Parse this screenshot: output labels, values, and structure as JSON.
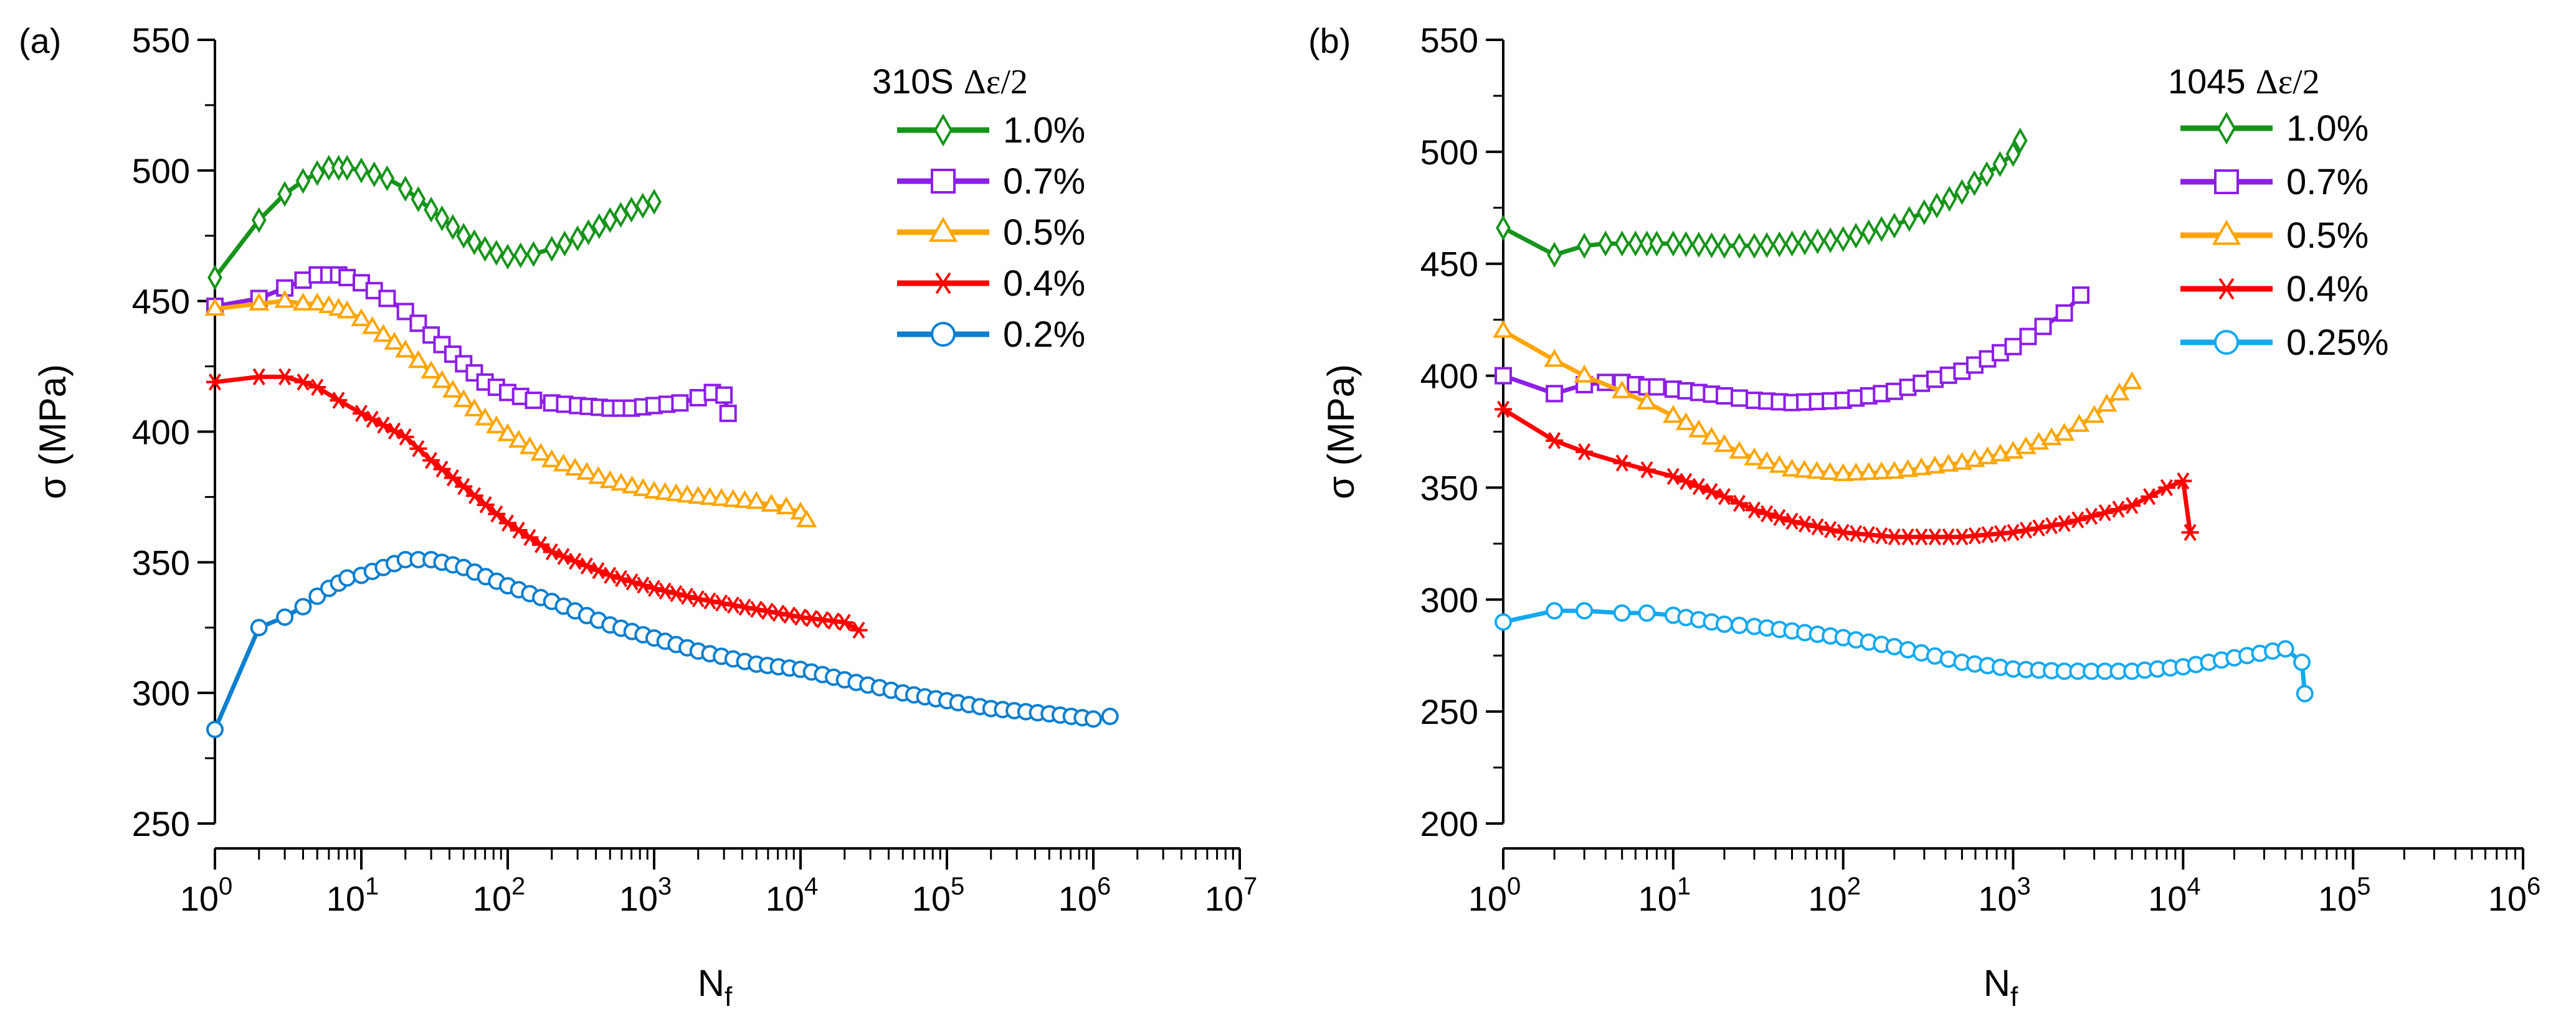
{
  "chart_data": [
    {
      "panel_label": "(a)",
      "type": "line",
      "x_scale": "log",
      "xlabel": "N",
      "xlabel_sub": "f",
      "ylabel": "σ (MPa)",
      "xlim": [
        1,
        10000000
      ],
      "ylim": [
        250,
        550
      ],
      "x_ticks": [
        {
          "value": 1,
          "base": "10",
          "exp": "0"
        },
        {
          "value": 10,
          "base": "10",
          "exp": "1"
        },
        {
          "value": 100,
          "base": "10",
          "exp": "2"
        },
        {
          "value": 1000,
          "base": "10",
          "exp": "3"
        },
        {
          "value": 10000,
          "base": "10",
          "exp": "4"
        },
        {
          "value": 100000,
          "base": "10",
          "exp": "5"
        },
        {
          "value": 1000000,
          "base": "10",
          "exp": "6"
        },
        {
          "value": 10000000,
          "base": "10",
          "exp": "7"
        }
      ],
      "y_ticks": [
        {
          "value": 250,
          "label": "250"
        },
        {
          "value": 300,
          "label": "300"
        },
        {
          "value": 350,
          "label": "350"
        },
        {
          "value": 400,
          "label": "400"
        },
        {
          "value": 450,
          "label": "450"
        },
        {
          "value": 500,
          "label": "500"
        },
        {
          "value": 550,
          "label": "550"
        }
      ],
      "legend": {
        "title": "310S Δε/2",
        "title_text": "310S",
        "title_symbol": "Δε/2",
        "position": "top-right"
      },
      "series": [
        {
          "name": "1.0%",
          "color": "#16941a",
          "marker": "diamond",
          "x": [
            1,
            2,
            3,
            4,
            5,
            6,
            7,
            8,
            10,
            15,
            20,
            30,
            50,
            70,
            100,
            150,
            200,
            300,
            500,
            700,
            1000
          ],
          "y": [
            459,
            481,
            491,
            496,
            499,
            501,
            501,
            501,
            500,
            497,
            493,
            485,
            475,
            470,
            467,
            468,
            470,
            474,
            481,
            485,
            488
          ]
        },
        {
          "name": "0.7%",
          "color": "#8c1ee6",
          "marker": "square",
          "x": [
            1,
            2,
            3,
            4,
            5,
            6,
            7,
            8,
            10,
            15,
            20,
            30,
            50,
            70,
            100,
            150,
            200,
            300,
            500,
            700,
            1000,
            1500,
            2000,
            2500,
            3000,
            3200
          ],
          "y": [
            448,
            451,
            455,
            458,
            460,
            460,
            460,
            459,
            457,
            451,
            446,
            437,
            426,
            419,
            415,
            412,
            411,
            410,
            409,
            409,
            410,
            411,
            413,
            415,
            414,
            407
          ]
        },
        {
          "name": "0.5%",
          "color": "#ffa500",
          "marker": "triangle",
          "x": [
            1,
            2,
            3,
            4,
            5,
            6,
            7,
            8,
            10,
            20,
            30,
            50,
            70,
            100,
            200,
            500,
            1000,
            2000,
            5000,
            8000,
            10000,
            11000
          ],
          "y": [
            447,
            449,
            450,
            449,
            449,
            448,
            447,
            446,
            443,
            431,
            423,
            412,
            405,
            399,
            389,
            381,
            377,
            375,
            373,
            371,
            369,
            366
          ]
        },
        {
          "name": "0.4%",
          "color": "#ff0000",
          "marker": "asterisk",
          "x": [
            1,
            2,
            3,
            4,
            5,
            7,
            10,
            20,
            30,
            50,
            100,
            200,
            500,
            1000,
            2000,
            5000,
            10000,
            20000,
            25000
          ],
          "y": [
            419,
            421,
            421,
            419,
            417,
            412,
            407,
            398,
            389,
            379,
            365,
            354,
            345,
            340,
            336,
            332,
            329,
            327,
            324
          ]
        },
        {
          "name": "0.2%",
          "color": "#0c7fd0",
          "marker": "circle",
          "x": [
            1,
            2,
            3,
            4,
            5,
            6,
            7,
            8,
            10,
            20,
            30,
            50,
            100,
            200,
            500,
            1000,
            2000,
            5000,
            10000,
            20000,
            50000,
            100000,
            200000,
            500000,
            1000000,
            1300000
          ],
          "y": [
            286,
            325,
            329,
            333,
            337,
            340,
            342,
            344,
            345,
            351,
            351,
            348,
            341,
            335,
            326,
            321,
            316,
            311,
            309,
            305,
            300,
            297,
            294,
            292,
            290,
            291
          ]
        }
      ]
    },
    {
      "panel_label": "(b)",
      "type": "line",
      "x_scale": "log",
      "xlabel": "N",
      "xlabel_sub": "f",
      "ylabel": "σ (MPa)",
      "xlim": [
        1,
        1000000
      ],
      "ylim": [
        200,
        550
      ],
      "x_ticks": [
        {
          "value": 1,
          "base": "10",
          "exp": "0"
        },
        {
          "value": 10,
          "base": "10",
          "exp": "1"
        },
        {
          "value": 100,
          "base": "10",
          "exp": "2"
        },
        {
          "value": 1000,
          "base": "10",
          "exp": "3"
        },
        {
          "value": 10000,
          "base": "10",
          "exp": "4"
        },
        {
          "value": 100000,
          "base": "10",
          "exp": "5"
        },
        {
          "value": 1000000,
          "base": "10",
          "exp": "6"
        }
      ],
      "y_ticks": [
        {
          "value": 200,
          "label": "200"
        },
        {
          "value": 250,
          "label": "250"
        },
        {
          "value": 300,
          "label": "300"
        },
        {
          "value": 350,
          "label": "350"
        },
        {
          "value": 400,
          "label": "400"
        },
        {
          "value": 450,
          "label": "450"
        },
        {
          "value": 500,
          "label": "500"
        },
        {
          "value": 550,
          "label": "550"
        }
      ],
      "legend": {
        "title": "1045 Δε/2",
        "title_text": "1045",
        "title_symbol": "Δε/2",
        "position": "top-right"
      },
      "series": [
        {
          "name": "1.0%",
          "color": "#16941a",
          "marker": "diamond",
          "x": [
            1,
            2,
            3,
            4,
            5,
            6,
            7,
            8,
            10,
            20,
            30,
            50,
            100,
            200,
            300,
            500,
            700,
            1000,
            1100
          ],
          "y": [
            466,
            454,
            458,
            459,
            459,
            459,
            459,
            459,
            459,
            458,
            458,
            459,
            461,
            467,
            473,
            482,
            490,
            499,
            505
          ]
        },
        {
          "name": "0.7%",
          "color": "#8c1ee6",
          "marker": "square",
          "x": [
            1,
            2,
            3,
            4,
            5,
            6,
            7,
            8,
            10,
            20,
            30,
            50,
            100,
            200,
            500,
            1000,
            1500,
            2000,
            2500
          ],
          "y": [
            400,
            392,
            396,
            397,
            397,
            396,
            395,
            395,
            394,
            391,
            389,
            388,
            389,
            393,
            402,
            413,
            422,
            428,
            436
          ]
        },
        {
          "name": "0.5%",
          "color": "#ffa500",
          "marker": "triangle",
          "x": [
            1,
            2,
            3,
            5,
            7,
            10,
            20,
            30,
            50,
            70,
            100,
            200,
            500,
            1000,
            2000,
            3000,
            5000
          ],
          "y": [
            420,
            407,
            400,
            393,
            388,
            382,
            369,
            363,
            358,
            357,
            356,
            357,
            361,
            366,
            374,
            382,
            397
          ]
        },
        {
          "name": "0.4%",
          "color": "#ff0000",
          "marker": "asterisk",
          "x": [
            1,
            2,
            3,
            5,
            7,
            10,
            20,
            30,
            50,
            100,
            200,
            500,
            1000,
            2000,
            5000,
            8000,
            10000,
            11000
          ],
          "y": [
            385,
            371,
            366,
            361,
            358,
            355,
            346,
            340,
            335,
            330,
            328,
            328,
            330,
            334,
            342,
            350,
            353,
            330
          ]
        },
        {
          "name": "0.25%",
          "color": "#14a9f0",
          "marker": "circle",
          "x": [
            1,
            2,
            3,
            5,
            7,
            10,
            20,
            30,
            50,
            100,
            200,
            500,
            1000,
            2000,
            5000,
            10000,
            20000,
            40000,
            50000,
            52000
          ],
          "y": [
            290,
            295,
            295,
            294,
            294,
            293,
            289,
            288,
            286,
            283,
            279,
            272,
            269,
            268,
            268,
            270,
            274,
            278,
            272,
            258
          ]
        }
      ]
    }
  ]
}
